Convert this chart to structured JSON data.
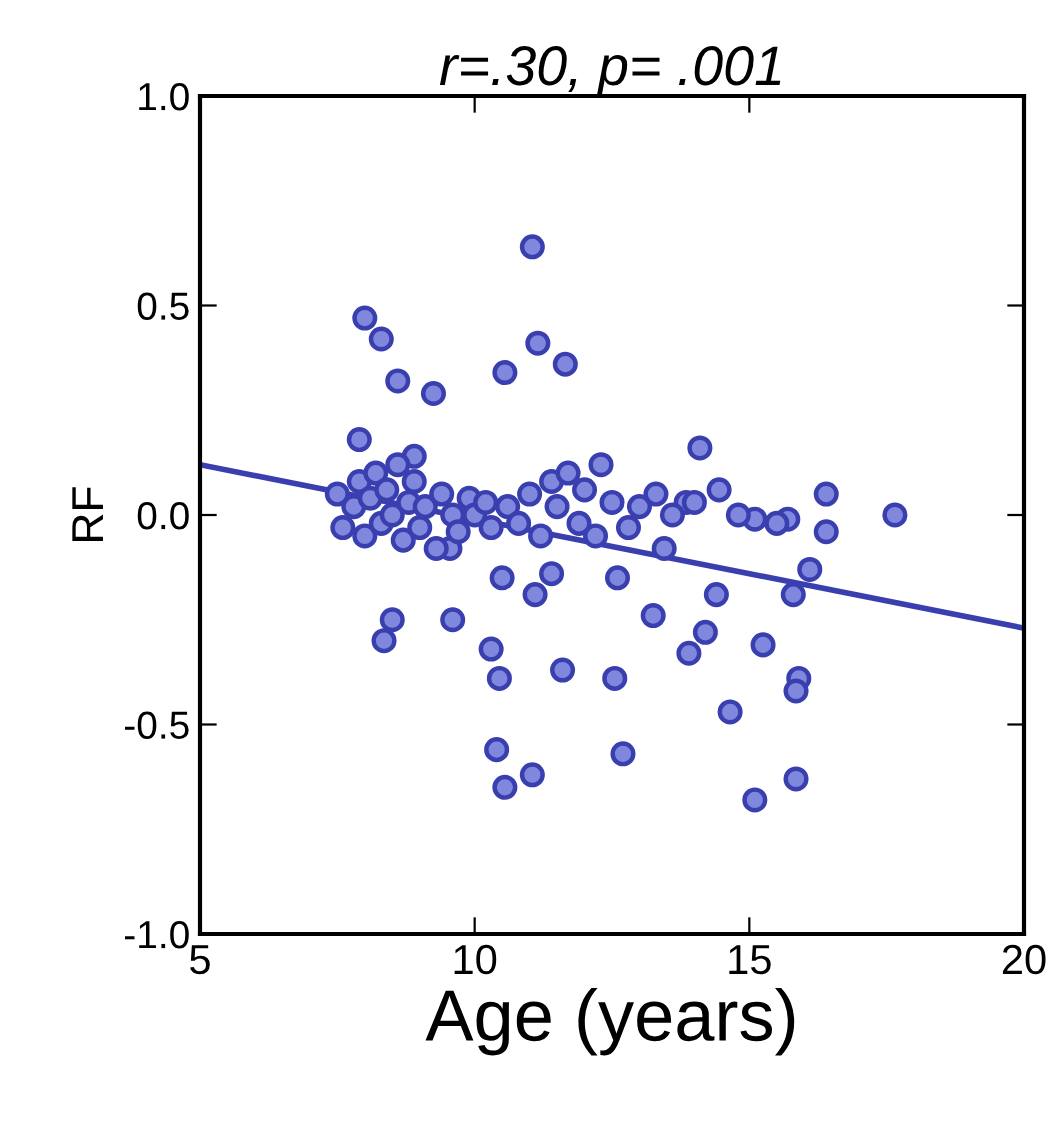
{
  "chart_data": {
    "type": "scatter",
    "title": "r=.30, p= .001",
    "xlabel": "Age (years)",
    "ylabel": "RF",
    "grid": false,
    "xlim": [
      5,
      20
    ],
    "xticks": [
      5,
      10,
      15,
      20
    ],
    "ylim": [
      -1,
      1
    ],
    "yticks": [
      {
        "value": 1,
        "label": "1.0"
      },
      {
        "value": 0.5,
        "label": "0.5"
      },
      {
        "value": 0,
        "label": "0.0"
      },
      {
        "value": -0.5,
        "label": "-0.5"
      },
      {
        "value": -1,
        "label": "-1.0"
      }
    ],
    "series": [
      {
        "marker": "circle",
        "color": "#3a3fb0",
        "x": [
          11.05,
          8.0,
          8.3,
          8.6,
          9.25,
          10.55,
          11.15,
          11.65,
          7.9,
          8.9,
          12.3,
          14.1,
          16.4,
          17.65,
          15.7,
          16.4,
          15.1,
          14.45,
          13.3,
          13.85,
          10.5,
          11.4,
          11.1,
          12.6,
          13.25,
          8.5,
          8.35,
          9.6,
          10.3,
          10.45,
          11.6,
          12.55,
          10.4,
          10.55,
          11.05,
          12.7,
          9.55,
          14.4,
          14.2,
          13.9,
          15.25,
          15.9,
          15.85,
          14.65,
          15.85,
          15.1,
          16.1,
          15.8,
          13.45,
          7.5,
          7.6,
          7.8,
          7.9,
          8.0,
          8.1,
          8.2,
          8.3,
          8.4,
          8.5,
          8.6,
          8.7,
          8.8,
          8.9,
          9.0,
          9.1,
          9.3,
          9.4,
          9.6,
          9.7,
          9.9,
          10.0,
          10.2,
          10.3,
          10.6,
          10.8,
          11.0,
          11.2,
          11.4,
          11.5,
          11.7,
          11.9,
          12.0,
          12.2,
          12.5,
          12.8,
          13.0,
          13.6,
          14.0,
          14.8,
          15.5
        ],
        "values": [
          0.64,
          0.47,
          0.42,
          0.32,
          0.29,
          0.34,
          0.41,
          0.36,
          0.18,
          0.14,
          0.12,
          0.16,
          0.05,
          0.0,
          -0.01,
          -0.04,
          -0.01,
          0.06,
          0.05,
          0.03,
          -0.15,
          -0.14,
          -0.19,
          -0.15,
          -0.24,
          -0.25,
          -0.3,
          -0.25,
          -0.32,
          -0.39,
          -0.37,
          -0.39,
          -0.56,
          -0.65,
          -0.62,
          -0.57,
          -0.08,
          -0.19,
          -0.28,
          -0.33,
          -0.31,
          -0.39,
          -0.42,
          -0.47,
          -0.63,
          -0.68,
          -0.13,
          -0.19,
          -0.08,
          0.05,
          -0.03,
          0.02,
          0.08,
          -0.05,
          0.04,
          0.1,
          -0.02,
          0.06,
          0.0,
          0.12,
          -0.06,
          0.03,
          0.08,
          -0.03,
          0.02,
          -0.08,
          0.05,
          0.0,
          -0.04,
          0.04,
          0.0,
          0.03,
          -0.03,
          0.02,
          -0.02,
          0.05,
          -0.05,
          0.08,
          0.02,
          0.1,
          -0.02,
          0.06,
          -0.05,
          0.03,
          -0.03,
          0.02,
          0.0,
          0.03,
          0.0,
          -0.02
        ]
      },
      {
        "type": "line",
        "color": "#3a3fb0",
        "x": [
          5,
          20
        ],
        "values": [
          0.12,
          -0.27
        ]
      }
    ]
  }
}
